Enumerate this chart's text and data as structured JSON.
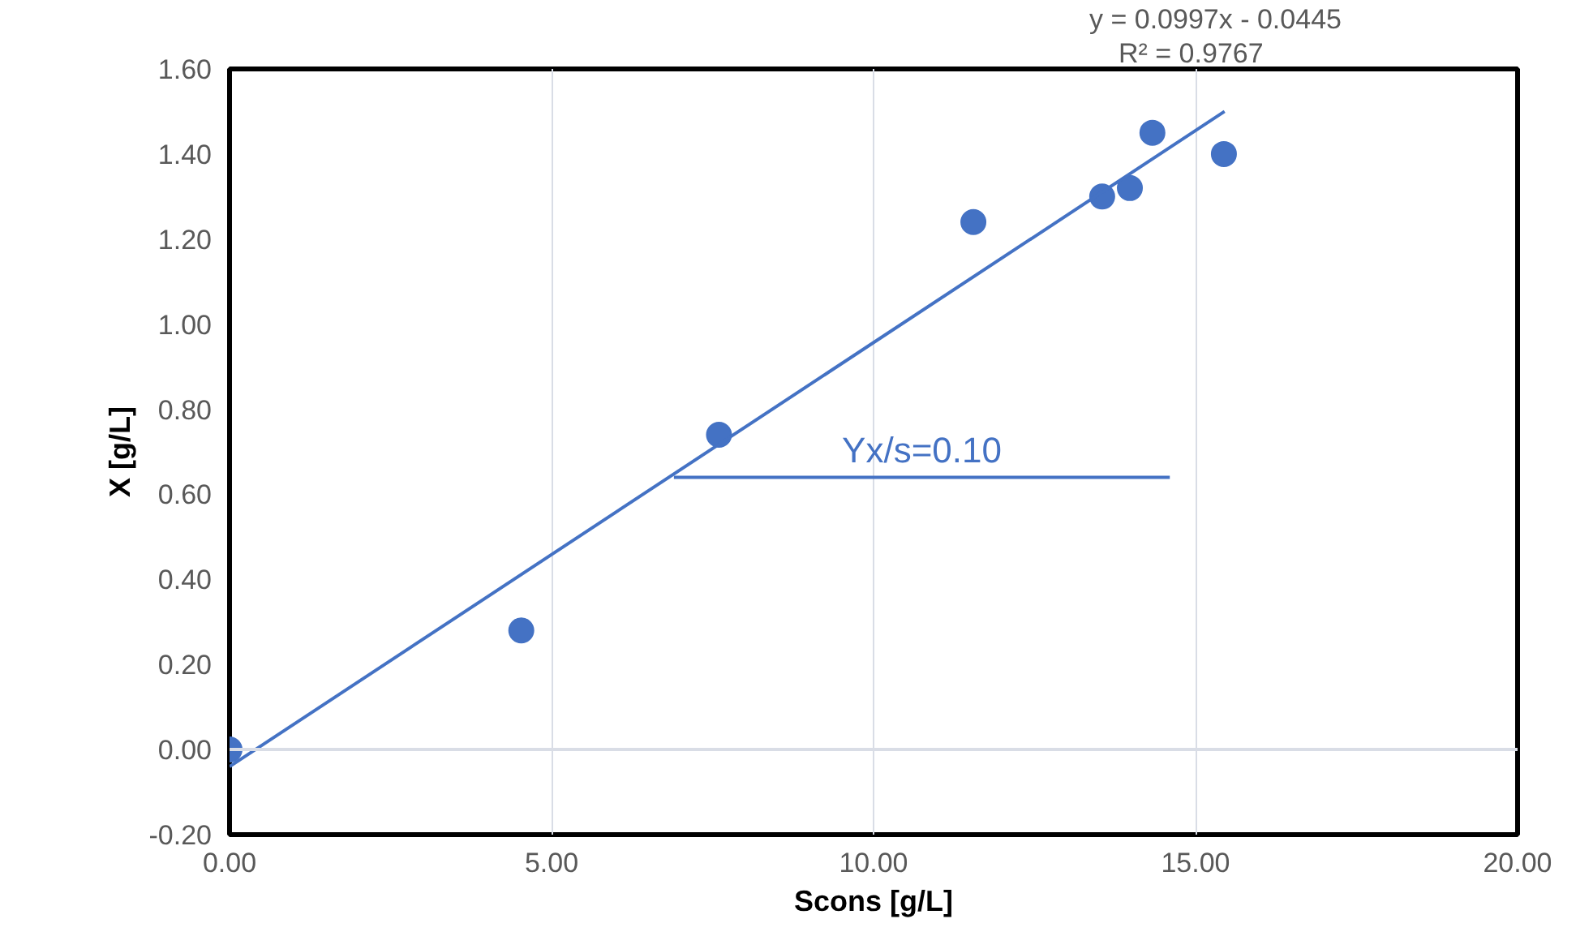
{
  "chart_data": {
    "type": "scatter",
    "xlabel": "Scons [g/L]",
    "ylabel": "X [g/L]",
    "annotations": [
      "y = 0.0997x - 0.0445",
      "R² = 0.9767"
    ],
    "xlim": [
      0,
      20
    ],
    "xticks": [
      {
        "value": 0,
        "label": "0.00"
      },
      {
        "value": 5,
        "label": "5.00"
      },
      {
        "value": 10,
        "label": "10.00"
      },
      {
        "value": 15,
        "label": "15.00"
      },
      {
        "value": 20,
        "label": "20.00"
      }
    ],
    "ylim": [
      -0.2,
      1.6
    ],
    "yticks": [
      {
        "value": -0.2,
        "label": "-0.20"
      },
      {
        "value": 0,
        "label": "0.00"
      },
      {
        "value": 0.2,
        "label": "0.20"
      },
      {
        "value": 0.4,
        "label": "0.40"
      },
      {
        "value": 0.6,
        "label": "0.60"
      },
      {
        "value": 0.8,
        "label": "0.80"
      },
      {
        "value": 1.0,
        "label": "1.00"
      },
      {
        "value": 1.2,
        "label": "1.20"
      },
      {
        "value": 1.4,
        "label": "1.40"
      },
      {
        "value": 1.6,
        "label": "1.60"
      }
    ],
    "grid": "x",
    "ref_lines": [
      {
        "axis": "y",
        "value": 0,
        "color": "#d9dde6"
      }
    ],
    "series": [
      {
        "color": "#4472c4",
        "marker": "circle",
        "x": [
          0,
          4.53,
          7.6,
          11.55,
          13.55,
          13.98,
          14.33,
          15.44
        ],
        "values": [
          0.0,
          0.28,
          0.74,
          1.24,
          1.3,
          1.32,
          1.45,
          1.4
        ]
      },
      {
        "type": "line",
        "color": "#4472c4",
        "x": [
          0,
          15.45
        ],
        "values": [
          -0.04,
          1.5
        ]
      },
      {
        "type": "line",
        "name": "Yx/s=0.10",
        "color": "#4472c4",
        "x": [
          6.9,
          14.6
        ],
        "values": [
          0.64,
          0.64
        ]
      }
    ]
  }
}
